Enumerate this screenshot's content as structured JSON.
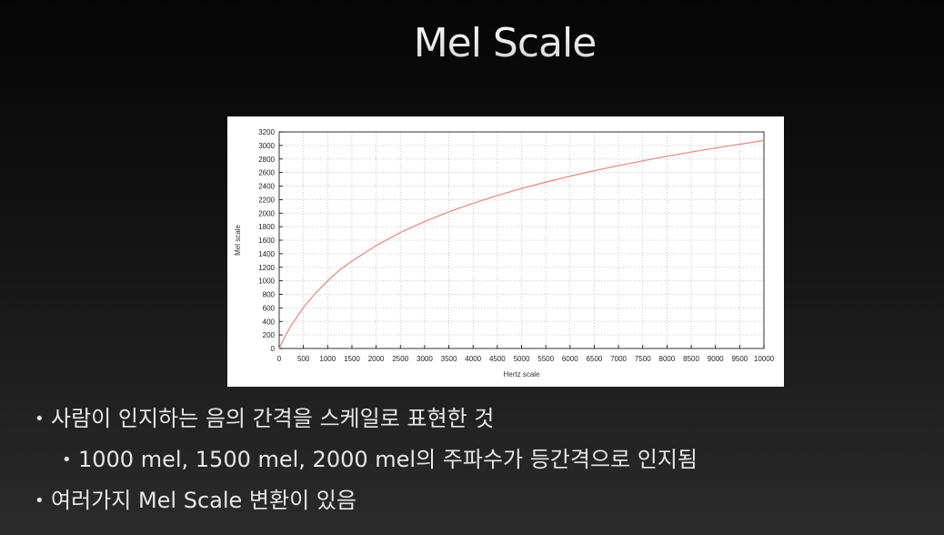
{
  "slide": {
    "title": "Mel Scale",
    "bullets": [
      {
        "text": "사람이 인지하는 음의 간격을 스케일로 표현한 것",
        "level": 1
      },
      {
        "text": "1000 mel, 1500 mel, 2000 mel의 주파수가 등간격으로 인지됨",
        "level": 2
      },
      {
        "text": "여러가지 Mel Scale 변환이 있음",
        "level": 1
      }
    ]
  },
  "chart_data": {
    "type": "line",
    "title": "",
    "xlabel": "Hertz scale",
    "ylabel": "Mel scale",
    "xlim": [
      0,
      10000
    ],
    "ylim": [
      0,
      3200
    ],
    "xticks": [
      0,
      500,
      1000,
      1500,
      2000,
      2500,
      3000,
      3500,
      4000,
      4500,
      5000,
      5500,
      6000,
      6500,
      7000,
      7500,
      8000,
      8500,
      9000,
      9500,
      10000
    ],
    "yticks": [
      0,
      200,
      400,
      600,
      800,
      1000,
      1200,
      1400,
      1600,
      1800,
      2000,
      2200,
      2400,
      2600,
      2800,
      3000,
      3200
    ],
    "grid": true,
    "grid_style": "dotted",
    "line_color": "#f08a80",
    "series": [
      {
        "x": [
          0,
          100,
          250,
          500,
          750,
          1000,
          1250,
          1500,
          2000,
          2500,
          3000,
          3500,
          4000,
          4500,
          5000,
          5500,
          6000,
          6500,
          7000,
          7500,
          8000,
          8500,
          9000,
          9500,
          10000
        ],
        "y": [
          0,
          150,
          344,
          607,
          818,
          1000,
          1161,
          1291,
          1521,
          1713,
          1876,
          2019,
          2146,
          2260,
          2364,
          2458,
          2546,
          2627,
          2702,
          2773,
          2840,
          2903,
          2963,
          3019,
          3073
        ]
      }
    ]
  }
}
